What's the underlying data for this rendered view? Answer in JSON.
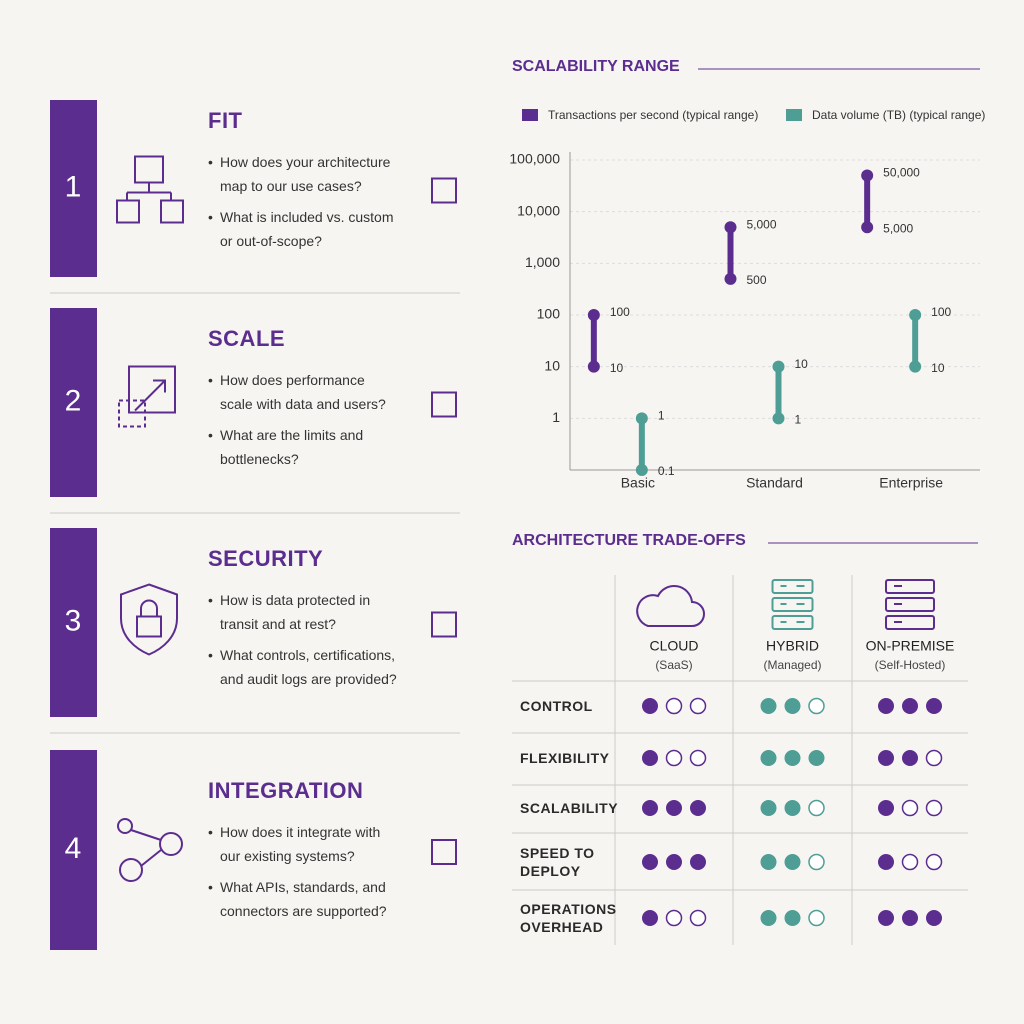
{
  "checklist": [
    {
      "number": "1",
      "title": "FIT",
      "questions": [
        "How does your architecture map to our use cases?",
        "What is included vs. custom or out-of-scope?"
      ]
    },
    {
      "number": "2",
      "title": "SCALE",
      "questions": [
        "How does performance scale with data and users?",
        "What are the limits and bottlenecks?"
      ]
    },
    {
      "number": "3",
      "title": "SECURITY",
      "questions": [
        "How is data protected in transit and at rest?",
        "What controls, certifications, and audit logs are provided?"
      ]
    },
    {
      "number": "4",
      "title": "INTEGRATION",
      "questions": [
        "How does it integrate with our existing systems?",
        "What APIs, standards, and connectors are supported?"
      ]
    }
  ],
  "chart_data": {
    "type": "range",
    "title": "SCALABILITY RANGE",
    "categories": [
      "Basic",
      "Standard",
      "Enterprise"
    ],
    "log_scale": true,
    "grid": true,
    "ylim": [
      0.1,
      100000
    ],
    "yticks": [
      1,
      10,
      100,
      {
        "value": 1000,
        "label": "1,000"
      },
      {
        "value": 10000,
        "label": "10,000"
      },
      {
        "value": 100000,
        "label": "100,000"
      }
    ],
    "series": [
      {
        "name": "Transactions per second (typical range)",
        "color": "#5b2d8e",
        "values": [
          [
            10,
            100
          ],
          [
            500,
            5000
          ],
          [
            5000,
            50000
          ]
        ],
        "value_labels": [
          [
            "10",
            "100"
          ],
          [
            "500",
            "5,000"
          ],
          [
            "5,000",
            "50,000"
          ]
        ]
      },
      {
        "name": "Data volume (TB) (typical range)",
        "color": "#4e9e96",
        "values": [
          [
            0.1,
            1
          ],
          [
            1,
            10
          ],
          [
            10,
            100
          ]
        ],
        "value_labels": [
          [
            "0.1",
            "1"
          ],
          [
            "1",
            "10"
          ],
          [
            "10",
            "100"
          ]
        ]
      }
    ]
  },
  "tradeoffs": {
    "title": "ARCHITECTURE TRADE-OFFS",
    "columns": [
      {
        "title": "CLOUD",
        "subtitle": "(SaaS)",
        "color": "#5b2d8e"
      },
      {
        "title": "HYBRID",
        "subtitle": "(Managed)",
        "color": "#4e9e96"
      },
      {
        "title": "ON-PREMISE",
        "subtitle": "(Self-Hosted)",
        "color": "#5b2d8e"
      }
    ],
    "rows": [
      {
        "label": "CONTROL",
        "ratings": [
          1,
          2,
          3
        ]
      },
      {
        "label": "FLEXIBILITY",
        "ratings": [
          1,
          3,
          2
        ]
      },
      {
        "label": "SCALABILITY",
        "ratings": [
          3,
          2,
          1
        ]
      },
      {
        "label": "SPEED TO DEPLOY",
        "ratings": [
          3,
          2,
          1
        ]
      },
      {
        "label": "OPERATIONS OVERHEAD",
        "ratings": [
          1,
          2,
          3
        ]
      }
    ]
  }
}
